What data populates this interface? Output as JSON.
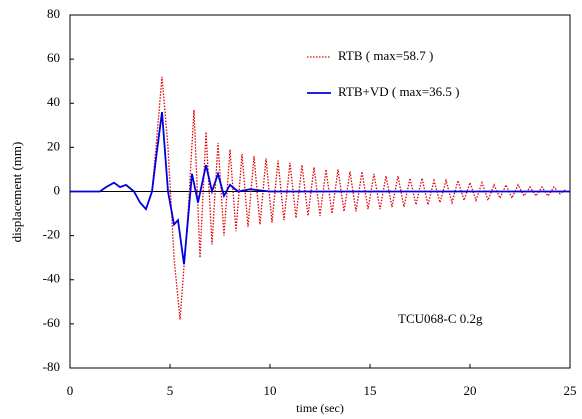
{
  "chart_data": {
    "type": "line",
    "xlabel": "time (sec)",
    "ylabel": "displacement (mm)",
    "annotation": "TCU068-C 0.2g",
    "xlim": [
      0,
      25
    ],
    "xticks": [
      0,
      5,
      10,
      15,
      20,
      25
    ],
    "ylim": [
      -80,
      80
    ],
    "yticks": [
      -80,
      -60,
      -40,
      -20,
      0,
      20,
      40,
      60,
      80
    ],
    "series": [
      {
        "name": "RTB ( max=58.7 )",
        "color": "#e00000",
        "x": [
          0,
          1,
          1.5,
          1.8,
          2.2,
          2.5,
          2.8,
          3.2,
          3.5,
          3.8,
          4.1,
          4.3,
          4.6,
          4.9,
          5.2,
          5.5,
          5.9,
          6.2,
          6.5,
          6.8,
          7.1,
          7.4,
          7.7,
          8.0,
          8.3,
          8.6,
          8.9,
          9.2,
          9.5,
          9.8,
          10.1,
          10.4,
          10.7,
          11.0,
          11.3,
          11.6,
          11.9,
          12.2,
          12.5,
          12.8,
          13.1,
          13.4,
          13.7,
          14.0,
          14.3,
          14.6,
          14.9,
          15.2,
          15.5,
          15.8,
          16.1,
          16.4,
          16.7,
          17.0,
          17.3,
          17.6,
          17.9,
          18.2,
          18.5,
          18.8,
          19.1,
          19.4,
          19.7,
          20.0,
          20.3,
          20.6,
          20.9,
          21.2,
          21.5,
          21.8,
          22.1,
          22.4,
          22.7,
          23.0,
          23.3,
          23.6,
          23.9,
          24.2,
          24.5,
          24.8
        ],
        "values": [
          0,
          0,
          0,
          2,
          4,
          2,
          3,
          0,
          -5,
          -8,
          0,
          20,
          52,
          20,
          -30,
          -58,
          -10,
          37,
          -30,
          27,
          -24,
          22,
          -20,
          19,
          -18,
          17,
          -16,
          16,
          -15,
          15,
          -14,
          14,
          -13,
          13,
          -12,
          12,
          -11,
          11,
          -11,
          10,
          -10,
          10,
          -9,
          9,
          -9,
          9,
          -8,
          8,
          -8,
          7,
          -7,
          7,
          -7,
          6,
          -6,
          6,
          -6,
          5,
          -5,
          5,
          -5,
          5,
          -4,
          4,
          -4,
          4,
          -4,
          3,
          -3,
          3,
          -3,
          3,
          -2,
          2,
          -2,
          2,
          -2,
          2,
          -1,
          1
        ]
      },
      {
        "name": "RTB+VD ( max=36.5 )",
        "color": "#0000e0",
        "x": [
          0,
          1,
          1.5,
          1.8,
          2.2,
          2.5,
          2.8,
          3.2,
          3.5,
          3.8,
          4.1,
          4.3,
          4.6,
          4.9,
          5.2,
          5.4,
          5.7,
          6.1,
          6.4,
          6.8,
          7.1,
          7.4,
          7.7,
          8.0,
          8.4,
          9,
          10,
          12,
          15,
          20,
          25
        ],
        "values": [
          0,
          0,
          0,
          2,
          4,
          2,
          3,
          0,
          -5,
          -8,
          0,
          15,
          36,
          0,
          -15,
          -13,
          -33,
          8,
          -5,
          12,
          0,
          8,
          -2,
          3,
          0,
          1,
          0,
          0,
          0,
          0,
          0
        ]
      }
    ]
  }
}
